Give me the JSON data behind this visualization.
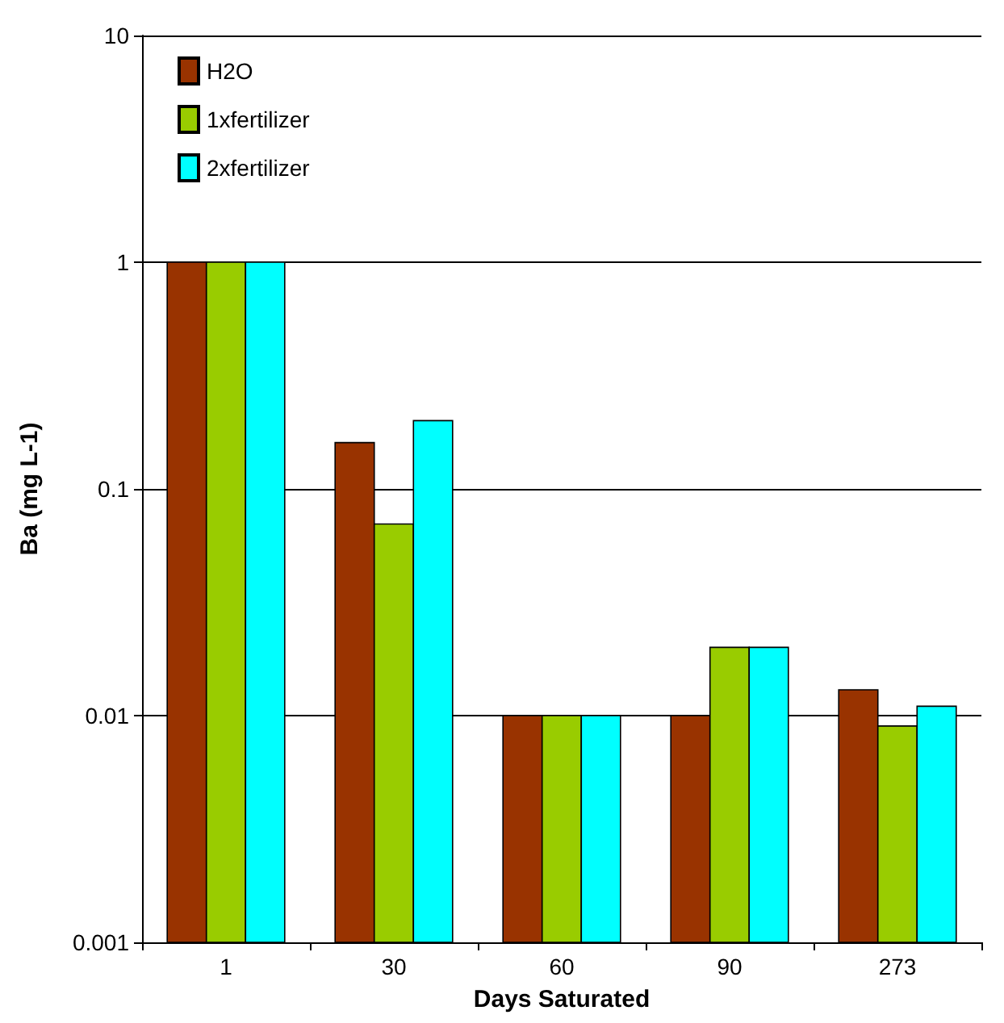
{
  "chart_data": {
    "type": "bar",
    "xlabel": "Days Saturated",
    "ylabel": "Ba (mg L-1)",
    "categories": [
      "1",
      "30",
      "60",
      "90",
      "273"
    ],
    "series": [
      {
        "name": "H2O",
        "color": "#993300",
        "values": [
          1,
          0.16,
          0.01,
          0.01,
          0.013
        ]
      },
      {
        "name": "1xfertilizer",
        "color": "#99cc00",
        "values": [
          1,
          0.07,
          0.01,
          0.02,
          0.009
        ]
      },
      {
        "name": "2xfertilizer",
        "color": "#00ffff",
        "values": [
          1,
          0.2,
          0.01,
          0.02,
          0.011
        ]
      }
    ],
    "log": "y",
    "ylim": [
      0.001,
      10
    ],
    "yticks": [
      0.001,
      0.01,
      0.1,
      1,
      10
    ],
    "grid": "y",
    "legend": "top left"
  }
}
